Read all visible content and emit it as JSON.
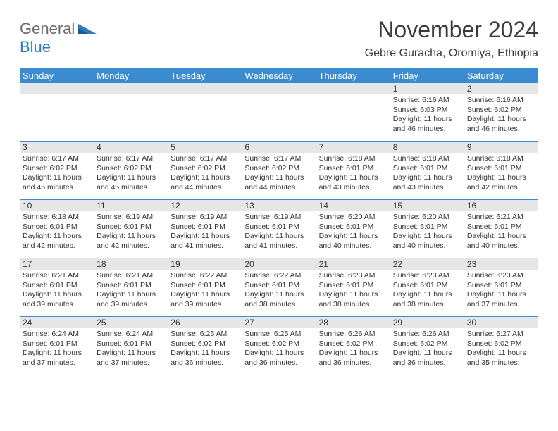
{
  "logo": {
    "general": "General",
    "blue": "Blue",
    "colors": {
      "general": "#6b6b6b",
      "blue": "#2d7bc0"
    }
  },
  "title": "November 2024",
  "location": "Gebre Guracha, Oromiya, Ethiopia",
  "header_bg": "#3b8bd0",
  "band_bg": "#e6e6e6",
  "border_color": "#3b8bd0",
  "text_color": "#333333",
  "day_headers": [
    "Sunday",
    "Monday",
    "Tuesday",
    "Wednesday",
    "Thursday",
    "Friday",
    "Saturday"
  ],
  "weeks": [
    [
      null,
      null,
      null,
      null,
      null,
      {
        "n": "1",
        "sr": "Sunrise: 6:16 AM",
        "ss": "Sunset: 6:03 PM",
        "dl": "Daylight: 11 hours and 46 minutes."
      },
      {
        "n": "2",
        "sr": "Sunrise: 6:16 AM",
        "ss": "Sunset: 6:02 PM",
        "dl": "Daylight: 11 hours and 46 minutes."
      }
    ],
    [
      {
        "n": "3",
        "sr": "Sunrise: 6:17 AM",
        "ss": "Sunset: 6:02 PM",
        "dl": "Daylight: 11 hours and 45 minutes."
      },
      {
        "n": "4",
        "sr": "Sunrise: 6:17 AM",
        "ss": "Sunset: 6:02 PM",
        "dl": "Daylight: 11 hours and 45 minutes."
      },
      {
        "n": "5",
        "sr": "Sunrise: 6:17 AM",
        "ss": "Sunset: 6:02 PM",
        "dl": "Daylight: 11 hours and 44 minutes."
      },
      {
        "n": "6",
        "sr": "Sunrise: 6:17 AM",
        "ss": "Sunset: 6:02 PM",
        "dl": "Daylight: 11 hours and 44 minutes."
      },
      {
        "n": "7",
        "sr": "Sunrise: 6:18 AM",
        "ss": "Sunset: 6:01 PM",
        "dl": "Daylight: 11 hours and 43 minutes."
      },
      {
        "n": "8",
        "sr": "Sunrise: 6:18 AM",
        "ss": "Sunset: 6:01 PM",
        "dl": "Daylight: 11 hours and 43 minutes."
      },
      {
        "n": "9",
        "sr": "Sunrise: 6:18 AM",
        "ss": "Sunset: 6:01 PM",
        "dl": "Daylight: 11 hours and 42 minutes."
      }
    ],
    [
      {
        "n": "10",
        "sr": "Sunrise: 6:18 AM",
        "ss": "Sunset: 6:01 PM",
        "dl": "Daylight: 11 hours and 42 minutes."
      },
      {
        "n": "11",
        "sr": "Sunrise: 6:19 AM",
        "ss": "Sunset: 6:01 PM",
        "dl": "Daylight: 11 hours and 42 minutes."
      },
      {
        "n": "12",
        "sr": "Sunrise: 6:19 AM",
        "ss": "Sunset: 6:01 PM",
        "dl": "Daylight: 11 hours and 41 minutes."
      },
      {
        "n": "13",
        "sr": "Sunrise: 6:19 AM",
        "ss": "Sunset: 6:01 PM",
        "dl": "Daylight: 11 hours and 41 minutes."
      },
      {
        "n": "14",
        "sr": "Sunrise: 6:20 AM",
        "ss": "Sunset: 6:01 PM",
        "dl": "Daylight: 11 hours and 40 minutes."
      },
      {
        "n": "15",
        "sr": "Sunrise: 6:20 AM",
        "ss": "Sunset: 6:01 PM",
        "dl": "Daylight: 11 hours and 40 minutes."
      },
      {
        "n": "16",
        "sr": "Sunrise: 6:21 AM",
        "ss": "Sunset: 6:01 PM",
        "dl": "Daylight: 11 hours and 40 minutes."
      }
    ],
    [
      {
        "n": "17",
        "sr": "Sunrise: 6:21 AM",
        "ss": "Sunset: 6:01 PM",
        "dl": "Daylight: 11 hours and 39 minutes."
      },
      {
        "n": "18",
        "sr": "Sunrise: 6:21 AM",
        "ss": "Sunset: 6:01 PM",
        "dl": "Daylight: 11 hours and 39 minutes."
      },
      {
        "n": "19",
        "sr": "Sunrise: 6:22 AM",
        "ss": "Sunset: 6:01 PM",
        "dl": "Daylight: 11 hours and 39 minutes."
      },
      {
        "n": "20",
        "sr": "Sunrise: 6:22 AM",
        "ss": "Sunset: 6:01 PM",
        "dl": "Daylight: 11 hours and 38 minutes."
      },
      {
        "n": "21",
        "sr": "Sunrise: 6:23 AM",
        "ss": "Sunset: 6:01 PM",
        "dl": "Daylight: 11 hours and 38 minutes."
      },
      {
        "n": "22",
        "sr": "Sunrise: 6:23 AM",
        "ss": "Sunset: 6:01 PM",
        "dl": "Daylight: 11 hours and 38 minutes."
      },
      {
        "n": "23",
        "sr": "Sunrise: 6:23 AM",
        "ss": "Sunset: 6:01 PM",
        "dl": "Daylight: 11 hours and 37 minutes."
      }
    ],
    [
      {
        "n": "24",
        "sr": "Sunrise: 6:24 AM",
        "ss": "Sunset: 6:01 PM",
        "dl": "Daylight: 11 hours and 37 minutes."
      },
      {
        "n": "25",
        "sr": "Sunrise: 6:24 AM",
        "ss": "Sunset: 6:01 PM",
        "dl": "Daylight: 11 hours and 37 minutes."
      },
      {
        "n": "26",
        "sr": "Sunrise: 6:25 AM",
        "ss": "Sunset: 6:02 PM",
        "dl": "Daylight: 11 hours and 36 minutes."
      },
      {
        "n": "27",
        "sr": "Sunrise: 6:25 AM",
        "ss": "Sunset: 6:02 PM",
        "dl": "Daylight: 11 hours and 36 minutes."
      },
      {
        "n": "28",
        "sr": "Sunrise: 6:26 AM",
        "ss": "Sunset: 6:02 PM",
        "dl": "Daylight: 11 hours and 36 minutes."
      },
      {
        "n": "29",
        "sr": "Sunrise: 6:26 AM",
        "ss": "Sunset: 6:02 PM",
        "dl": "Daylight: 11 hours and 36 minutes."
      },
      {
        "n": "30",
        "sr": "Sunrise: 6:27 AM",
        "ss": "Sunset: 6:02 PM",
        "dl": "Daylight: 11 hours and 35 minutes."
      }
    ]
  ]
}
